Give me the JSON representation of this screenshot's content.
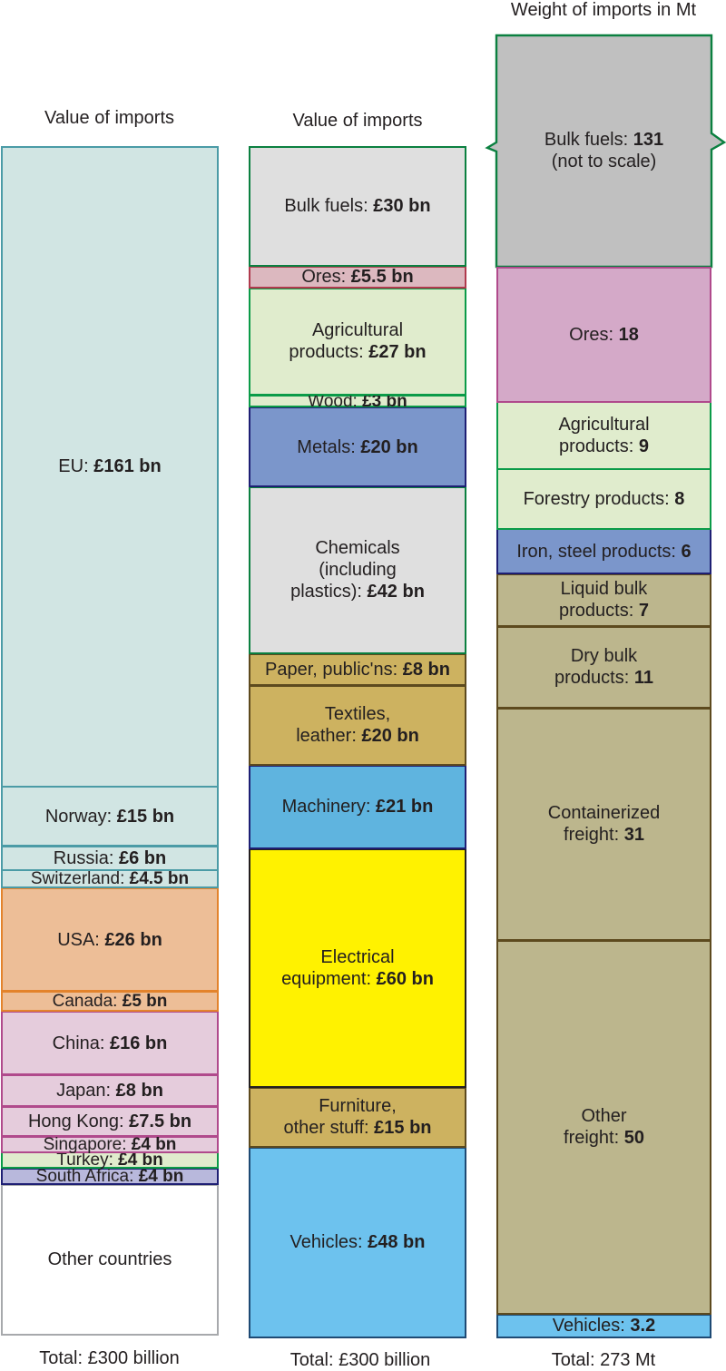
{
  "headings": {
    "countries": "Value of imports",
    "goods": "Value of imports",
    "weight": "Weight of imports in Mt"
  },
  "totals": {
    "countries": "Total: £300 billion",
    "goods": "Total: £300 billion",
    "weight": "Total: 273 Mt"
  },
  "chart_data": [
    {
      "type": "bar",
      "title": "Value of imports",
      "unit": "£ bn",
      "total_label": "Total: £300 billion",
      "segments": [
        {
          "label": "EU: ",
          "value_text": "£161 bn",
          "value": 161,
          "fill": "#d1e5e3",
          "border": "#4b9ba6"
        },
        {
          "label": "Norway: ",
          "value_text": "£15 bn",
          "value": 15,
          "fill": "#d1e5e3",
          "border": "#4b9ba6"
        },
        {
          "label": "Russia: ",
          "value_text": "£6 bn",
          "value": 6,
          "fill": "#d1e5e3",
          "border": "#4b9ba6"
        },
        {
          "label": "Switzerland: ",
          "value_text": "£4.5 bn",
          "value": 4.5,
          "fill": "#d1e5e3",
          "border": "#4b9ba6"
        },
        {
          "label": "USA: ",
          "value_text": "£26 bn",
          "value": 26,
          "fill": "#edbe97",
          "border": "#e3832c"
        },
        {
          "label": "Canada: ",
          "value_text": "£5 bn",
          "value": 5,
          "fill": "#edbe97",
          "border": "#e3832c"
        },
        {
          "label": "China: ",
          "value_text": "£16 bn",
          "value": 16,
          "fill": "#e5ccdc",
          "border": "#b04a8c"
        },
        {
          "label": "Japan: ",
          "value_text": "£8 bn",
          "value": 8,
          "fill": "#e5ccdc",
          "border": "#b04a8c"
        },
        {
          "label": "Hong Kong: ",
          "value_text": "£7.5 bn",
          "value": 7.5,
          "fill": "#e5ccdc",
          "border": "#b04a8c"
        },
        {
          "label": "Singapore: ",
          "value_text": "£4 bn",
          "value": 4,
          "fill": "#e5ccdc",
          "border": "#b04a8c"
        },
        {
          "label": "Turkey: ",
          "value_text": "£4 bn",
          "value": 4,
          "fill": "#e0eccd",
          "border": "#0b9b48"
        },
        {
          "label": "South Africa: ",
          "value_text": "£4 bn",
          "value": 4,
          "fill": "#b8b8dc",
          "border": "#1e1f74"
        },
        {
          "label": "Other countries",
          "value_text": "",
          "value": 38,
          "fill": "#ffffff",
          "border": "#a7a9ac"
        }
      ]
    },
    {
      "type": "bar",
      "title": "Value of imports",
      "unit": "£ bn",
      "total_label": "Total: £300 billion",
      "segments": [
        {
          "label": "Bulk fuels: ",
          "value_text": "£30 bn",
          "value": 30,
          "fill": "#dfdfdf",
          "border": "#0b8040"
        },
        {
          "label": "Ores: ",
          "value_text": "£5.5 bn",
          "value": 5.5,
          "fill": "#dcb8bf",
          "border": "#b03a4d"
        },
        {
          "label": "Agricultural\nproducts: ",
          "value_text": "£27 bn",
          "value": 27,
          "fill": "#e0eccd",
          "border": "#0b9b48"
        },
        {
          "label": "Wood: ",
          "value_text": "£3 bn",
          "value": 3,
          "fill": "#e0eccd",
          "border": "#0b9b48"
        },
        {
          "label": "Metals: ",
          "value_text": "£20 bn",
          "value": 20,
          "fill": "#7b96cb",
          "border": "#1e1f74"
        },
        {
          "label": "Chemicals\n(including\nplastics): ",
          "value_text": "£42 bn",
          "value": 42,
          "fill": "#dfdfdf",
          "border": "#0b8040"
        },
        {
          "label": "Paper, public'ns: ",
          "value_text": "£8 bn",
          "value": 8,
          "fill": "#cdb260",
          "border": "#5d4a1e"
        },
        {
          "label": "Textiles,\nleather: ",
          "value_text": "£20 bn",
          "value": 20,
          "fill": "#cdb260",
          "border": "#5d4a1e"
        },
        {
          "label": "Machinery: ",
          "value_text": "£21 bn",
          "value": 21,
          "fill": "#5fb4df",
          "border": "#1e1f74"
        },
        {
          "label": "Electrical\nequipment: ",
          "value_text": "£60 bn",
          "value": 60,
          "fill": "#fff200",
          "border": "#231f20"
        },
        {
          "label": "Furniture,\nother stuff: ",
          "value_text": "£15 bn",
          "value": 15,
          "fill": "#cdb260",
          "border": "#5d4a1e"
        },
        {
          "label": "Vehicles: ",
          "value_text": "£48 bn",
          "value": 48,
          "fill": "#6dc2ee",
          "border": "#1e4a74"
        }
      ]
    },
    {
      "type": "bar",
      "title": "Weight of imports in Mt",
      "unit": "Mt",
      "total_label": "Total: 273 Mt",
      "segments": [
        {
          "label": "Bulk fuels: ",
          "value_text": "131",
          "sublabel": "(not to scale)",
          "value": 131,
          "fill": "#c0c0c0",
          "border": "#0b8040"
        },
        {
          "label": "Ores: ",
          "value_text": "18",
          "value": 18,
          "fill": "#d4a9c8",
          "border": "#b04a8c"
        },
        {
          "label": "Agricultural\nproducts: ",
          "value_text": "9",
          "value": 9,
          "fill": "#e0eccd",
          "border": "#0b9b48"
        },
        {
          "label": "Forestry products: ",
          "value_text": "8",
          "value": 8,
          "fill": "#e0eccd",
          "border": "#0b9b48"
        },
        {
          "label": "Iron, steel products: ",
          "value_text": "6",
          "value": 6,
          "fill": "#7b96cb",
          "border": "#1e1f74"
        },
        {
          "label": "Liquid bulk\nproducts: ",
          "value_text": "7",
          "value": 7,
          "fill": "#bcb68d",
          "border": "#5d4a1e"
        },
        {
          "label": "Dry bulk\nproducts: ",
          "value_text": "11",
          "value": 11,
          "fill": "#bcb68d",
          "border": "#5d4a1e"
        },
        {
          "label": "Containerized\nfreight: ",
          "value_text": "31",
          "value": 31,
          "fill": "#bcb68d",
          "border": "#5d4a1e"
        },
        {
          "label": "Other\nfreight: ",
          "value_text": "50",
          "value": 50,
          "fill": "#bcb68d",
          "border": "#5d4a1e"
        },
        {
          "label": "Vehicles: ",
          "value_text": "3.2",
          "value": 3.2,
          "fill": "#6dc2ee",
          "border": "#1e4a74"
        }
      ]
    }
  ]
}
